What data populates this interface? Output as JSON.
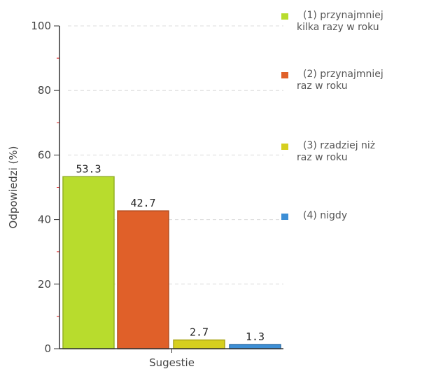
{
  "chart_data": {
    "type": "bar",
    "categories": [
      "Sugestie"
    ],
    "series": [
      {
        "name": "(1) przynajmniej kilka razy w roku",
        "name_lines": [
          "(1) przynajmniej",
          "kilka razy w roku"
        ],
        "values": [
          53.3
        ],
        "label": "53.3",
        "color": "#b8dc2d"
      },
      {
        "name": "(2) przynajmniej raz w roku",
        "name_lines": [
          "(2) przynajmniej",
          "raz w roku"
        ],
        "values": [
          42.7
        ],
        "label": "42.7",
        "color": "#e06029"
      },
      {
        "name": "(3) rzadziej niż raz w roku",
        "name_lines": [
          "(3) rzadziej niż",
          "raz w roku"
        ],
        "values": [
          2.7
        ],
        "label": "2.7",
        "color": "#d6cf1f"
      },
      {
        "name": "(4) nigdy",
        "name_lines": [
          "(4) nigdy"
        ],
        "values": [
          1.3
        ],
        "label": "1.3",
        "color": "#3d8fd6"
      }
    ],
    "xlabel": "Sugestie",
    "ylabel": "Odpowiedzi (%)",
    "ylim": [
      0,
      100
    ],
    "yticks": [
      "0",
      "20",
      "40",
      "60",
      "80",
      "100"
    ],
    "grid": true,
    "legend_position": "right"
  }
}
